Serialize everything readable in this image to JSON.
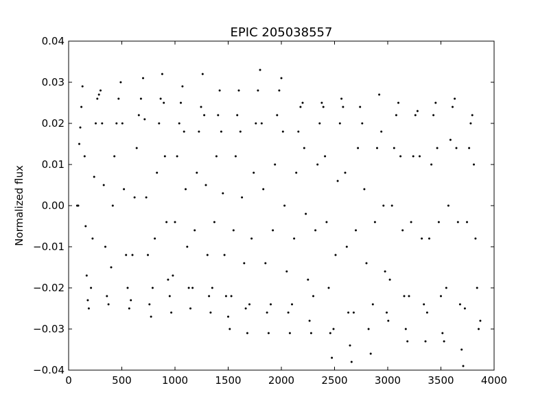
{
  "chart_data": {
    "type": "scatter",
    "title": "EPIC 205038557",
    "xlabel": "",
    "ylabel": "Normalized flux",
    "xlim": [
      0,
      4000
    ],
    "ylim": [
      -0.04,
      0.04
    ],
    "xticks": [
      0,
      500,
      1000,
      1500,
      2000,
      2500,
      3000,
      3500,
      4000
    ],
    "yticks": [
      -0.04,
      -0.03,
      -0.02,
      -0.01,
      0.0,
      0.01,
      0.02,
      0.03,
      0.04
    ],
    "xtick_labels": [
      "0",
      "500",
      "1000",
      "1500",
      "2000",
      "2500",
      "3000",
      "3500",
      "4000"
    ],
    "ytick_labels": [
      "−0.04",
      "−0.03",
      "−0.02",
      "−0.01",
      "0.00",
      "0.01",
      "0.02",
      "0.03",
      "0.04"
    ],
    "grid": false,
    "marker_color": "#000000",
    "series": [
      {
        "points": [
          [
            80,
            0.0
          ],
          [
            90,
            0.0
          ],
          [
            100,
            0.015
          ],
          [
            110,
            0.019
          ],
          [
            120,
            0.024
          ],
          [
            130,
            0.029
          ],
          [
            150,
            0.012
          ],
          [
            160,
            -0.005
          ],
          [
            170,
            -0.017
          ],
          [
            180,
            -0.023
          ],
          [
            190,
            -0.025
          ],
          [
            210,
            -0.02
          ],
          [
            225,
            -0.008
          ],
          [
            240,
            0.007
          ],
          [
            255,
            0.02
          ],
          [
            270,
            0.026
          ],
          [
            285,
            0.027
          ],
          [
            300,
            0.028
          ],
          [
            315,
            0.02
          ],
          [
            330,
            0.005
          ],
          [
            345,
            -0.01
          ],
          [
            360,
            -0.022
          ],
          [
            375,
            -0.024
          ],
          [
            400,
            -0.015
          ],
          [
            415,
            0.0
          ],
          [
            430,
            0.012
          ],
          [
            450,
            0.02
          ],
          [
            470,
            0.026
          ],
          [
            490,
            0.03
          ],
          [
            505,
            0.02
          ],
          [
            520,
            0.004
          ],
          [
            540,
            -0.012
          ],
          [
            555,
            -0.02
          ],
          [
            570,
            -0.025
          ],
          [
            585,
            -0.023
          ],
          [
            600,
            -0.012
          ],
          [
            620,
            0.002
          ],
          [
            640,
            0.014
          ],
          [
            660,
            0.022
          ],
          [
            680,
            0.026
          ],
          [
            700,
            0.031
          ],
          [
            715,
            0.021
          ],
          [
            730,
            0.002
          ],
          [
            745,
            -0.012
          ],
          [
            760,
            -0.024
          ],
          [
            775,
            -0.027
          ],
          [
            790,
            -0.02
          ],
          [
            810,
            -0.008
          ],
          [
            830,
            0.008
          ],
          [
            850,
            0.02
          ],
          [
            865,
            0.026
          ],
          [
            880,
            0.032
          ],
          [
            895,
            0.025
          ],
          [
            905,
            0.012
          ],
          [
            920,
            -0.004
          ],
          [
            935,
            -0.018
          ],
          [
            950,
            -0.022
          ],
          [
            965,
            -0.026
          ],
          [
            980,
            -0.017
          ],
          [
            1000,
            -0.004
          ],
          [
            1020,
            0.012
          ],
          [
            1040,
            0.02
          ],
          [
            1055,
            0.025
          ],
          [
            1070,
            0.029
          ],
          [
            1085,
            0.018
          ],
          [
            1100,
            0.004
          ],
          [
            1115,
            -0.01
          ],
          [
            1130,
            -0.02
          ],
          [
            1145,
            -0.025
          ],
          [
            1165,
            -0.02
          ],
          [
            1185,
            -0.006
          ],
          [
            1205,
            0.008
          ],
          [
            1225,
            0.018
          ],
          [
            1245,
            0.024
          ],
          [
            1260,
            0.032
          ],
          [
            1275,
            0.022
          ],
          [
            1290,
            0.005
          ],
          [
            1305,
            -0.012
          ],
          [
            1320,
            -0.022
          ],
          [
            1335,
            -0.026
          ],
          [
            1350,
            -0.02
          ],
          [
            1370,
            -0.004
          ],
          [
            1390,
            0.012
          ],
          [
            1405,
            0.022
          ],
          [
            1420,
            0.028
          ],
          [
            1435,
            0.018
          ],
          [
            1450,
            0.003
          ],
          [
            1465,
            -0.012
          ],
          [
            1480,
            -0.022
          ],
          [
            1500,
            -0.027
          ],
          [
            1515,
            -0.03
          ],
          [
            1530,
            -0.022
          ],
          [
            1550,
            -0.006
          ],
          [
            1570,
            0.012
          ],
          [
            1585,
            0.022
          ],
          [
            1600,
            0.028
          ],
          [
            1615,
            0.018
          ],
          [
            1630,
            0.002
          ],
          [
            1650,
            -0.014
          ],
          [
            1665,
            -0.025
          ],
          [
            1680,
            -0.031
          ],
          [
            1700,
            -0.024
          ],
          [
            1720,
            -0.008
          ],
          [
            1740,
            0.008
          ],
          [
            1760,
            0.02
          ],
          [
            1780,
            0.028
          ],
          [
            1800,
            0.033
          ],
          [
            1815,
            0.02
          ],
          [
            1830,
            0.004
          ],
          [
            1850,
            -0.014
          ],
          [
            1865,
            -0.026
          ],
          [
            1880,
            -0.031
          ],
          [
            1900,
            -0.024
          ],
          [
            1920,
            -0.006
          ],
          [
            1940,
            0.01
          ],
          [
            1960,
            0.022
          ],
          [
            1980,
            0.028
          ],
          [
            2000,
            0.031
          ],
          [
            2015,
            0.018
          ],
          [
            2030,
            0.0
          ],
          [
            2050,
            -0.016
          ],
          [
            2065,
            -0.026
          ],
          [
            2080,
            -0.031
          ],
          [
            2100,
            -0.024
          ],
          [
            2120,
            -0.008
          ],
          [
            2140,
            0.008
          ],
          [
            2160,
            0.018
          ],
          [
            2180,
            0.024
          ],
          [
            2200,
            0.025
          ],
          [
            2215,
            0.014
          ],
          [
            2230,
            -0.002
          ],
          [
            2250,
            -0.018
          ],
          [
            2265,
            -0.028
          ],
          [
            2280,
            -0.031
          ],
          [
            2300,
            -0.022
          ],
          [
            2320,
            -0.006
          ],
          [
            2340,
            0.01
          ],
          [
            2360,
            0.02
          ],
          [
            2380,
            0.025
          ],
          [
            2395,
            0.024
          ],
          [
            2410,
            0.012
          ],
          [
            2425,
            -0.004
          ],
          [
            2445,
            -0.02
          ],
          [
            2460,
            -0.031
          ],
          [
            2475,
            -0.037
          ],
          [
            2490,
            -0.03
          ],
          [
            2510,
            -0.012
          ],
          [
            2530,
            0.006
          ],
          [
            2550,
            0.02
          ],
          [
            2565,
            0.026
          ],
          [
            2580,
            0.024
          ],
          [
            2600,
            0.008
          ],
          [
            2615,
            -0.01
          ],
          [
            2630,
            -0.026
          ],
          [
            2645,
            -0.034
          ],
          [
            2660,
            -0.038
          ],
          [
            2680,
            -0.026
          ],
          [
            2700,
            -0.006
          ],
          [
            2720,
            0.014
          ],
          [
            2740,
            0.024
          ],
          [
            2760,
            0.02
          ],
          [
            2780,
            0.004
          ],
          [
            2800,
            -0.014
          ],
          [
            2820,
            -0.03
          ],
          [
            2840,
            -0.036
          ],
          [
            2860,
            -0.024
          ],
          [
            2880,
            -0.004
          ],
          [
            2900,
            0.014
          ],
          [
            2920,
            0.027
          ],
          [
            2940,
            0.018
          ],
          [
            2960,
            0.0
          ],
          [
            2975,
            -0.016
          ],
          [
            2990,
            -0.026
          ],
          [
            3005,
            -0.028
          ],
          [
            3020,
            -0.018
          ],
          [
            3040,
            0.0
          ],
          [
            3060,
            0.014
          ],
          [
            3080,
            0.022
          ],
          [
            3100,
            0.025
          ],
          [
            3120,
            0.012
          ],
          [
            3140,
            -0.006
          ],
          [
            3155,
            -0.022
          ],
          [
            3170,
            -0.03
          ],
          [
            3185,
            -0.033
          ],
          [
            3200,
            -0.022
          ],
          [
            3220,
            -0.004
          ],
          [
            3240,
            0.012
          ],
          [
            3260,
            0.022
          ],
          [
            3280,
            0.023
          ],
          [
            3300,
            0.012
          ],
          [
            3320,
            -0.008
          ],
          [
            3340,
            -0.024
          ],
          [
            3355,
            -0.033
          ],
          [
            3370,
            -0.026
          ],
          [
            3390,
            -0.008
          ],
          [
            3410,
            0.01
          ],
          [
            3430,
            0.022
          ],
          [
            3450,
            0.025
          ],
          [
            3465,
            0.014
          ],
          [
            3480,
            -0.004
          ],
          [
            3500,
            -0.022
          ],
          [
            3515,
            -0.031
          ],
          [
            3530,
            -0.033
          ],
          [
            3550,
            -0.02
          ],
          [
            3570,
            0.0
          ],
          [
            3590,
            0.016
          ],
          [
            3610,
            0.024
          ],
          [
            3630,
            0.026
          ],
          [
            3645,
            0.014
          ],
          [
            3660,
            -0.004
          ],
          [
            3680,
            -0.024
          ],
          [
            3695,
            -0.035
          ],
          [
            3710,
            -0.039
          ],
          [
            3725,
            -0.025
          ],
          [
            3745,
            -0.004
          ],
          [
            3765,
            0.014
          ],
          [
            3780,
            0.02
          ],
          [
            3795,
            0.022
          ],
          [
            3810,
            0.01
          ],
          [
            3825,
            -0.008
          ],
          [
            3840,
            -0.02
          ],
          [
            3855,
            -0.03
          ],
          [
            3870,
            -0.028
          ]
        ]
      }
    ]
  }
}
